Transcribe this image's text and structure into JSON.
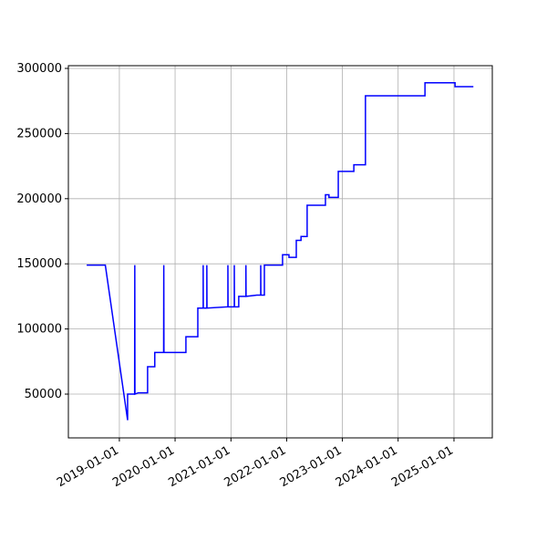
{
  "chart_data": {
    "type": "line",
    "color": "#0000ff",
    "grid": true,
    "x": [
      "2018-06-01",
      "2018-10-01",
      "2019-02-24",
      "2019-02-24",
      "2019-04-11",
      "2019-04-12",
      "2019-04-13",
      "2019-05-05",
      "2019-07-05",
      "2019-07-05",
      "2019-08-21",
      "2019-08-21",
      "2019-10-18",
      "2019-10-19",
      "2019-10-20",
      "2020-03-12",
      "2020-03-12",
      "2020-05-29",
      "2020-05-29",
      "2020-07-03",
      "2020-07-03",
      "2020-07-04",
      "2020-07-27",
      "2020-07-27",
      "2020-07-28",
      "2020-12-12",
      "2020-12-12",
      "2020-12-13",
      "2021-01-23",
      "2021-01-23",
      "2021-01-24",
      "2021-02-21",
      "2021-02-21",
      "2021-04-09",
      "2021-04-09",
      "2021-04-10",
      "2021-06-20",
      "2021-07-15",
      "2021-07-15",
      "2021-07-16",
      "2021-08-08",
      "2021-08-08",
      "2021-12-05",
      "2021-12-05",
      "2022-01-16",
      "2022-01-16",
      "2022-03-05",
      "2022-03-05",
      "2022-04-05",
      "2022-04-05",
      "2022-05-15",
      "2022-05-15",
      "2022-09-12",
      "2022-09-12",
      "2022-10-05",
      "2022-10-05",
      "2022-12-05",
      "2022-12-05",
      "2023-03-17",
      "2023-03-17",
      "2023-06-01",
      "2023-06-01",
      "2024-06-25",
      "2024-06-25",
      "2025-01-08",
      "2025-01-08",
      "2025-05-08"
    ],
    "values": [
      149000,
      149000,
      30000,
      50000,
      50000,
      149000,
      50000,
      51000,
      51000,
      71000,
      71000,
      82000,
      82000,
      149000,
      82000,
      82000,
      94000,
      94000,
      116000,
      116000,
      149000,
      116000,
      116000,
      149000,
      116000,
      117000,
      149000,
      117000,
      117000,
      149000,
      117000,
      117000,
      125000,
      125000,
      149000,
      125000,
      126000,
      126000,
      149000,
      126000,
      126000,
      149000,
      149000,
      157000,
      157000,
      155000,
      155000,
      168000,
      168000,
      171000,
      171000,
      195000,
      195000,
      203000,
      203000,
      201000,
      201000,
      221000,
      221000,
      226000,
      226000,
      279000,
      279000,
      289000,
      289000,
      286000,
      286000
    ],
    "xlim": [
      "2018-02-01",
      "2025-09-09"
    ],
    "xticks": [
      "2019-01-01",
      "2020-01-01",
      "2021-01-01",
      "2022-01-01",
      "2023-01-01",
      "2024-01-01",
      "2025-01-01"
    ],
    "ylim": [
      16400,
      302100
    ],
    "yticks": [
      50000,
      100000,
      150000,
      200000,
      250000,
      300000
    ]
  }
}
